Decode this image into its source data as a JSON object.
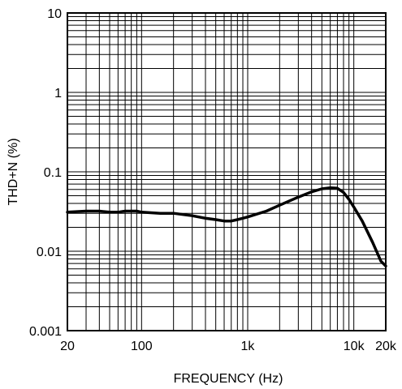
{
  "chart_data": {
    "type": "line",
    "title": "",
    "xlabel": "FREQUENCY (Hz)",
    "ylabel": "THD+N (%)",
    "xscale": "log",
    "yscale": "log",
    "xlim": [
      20,
      20000
    ],
    "ylim": [
      0.001,
      10
    ],
    "grid": true,
    "x_ticks": [
      {
        "value": 20,
        "label": "20"
      },
      {
        "value": 100,
        "label": "100"
      },
      {
        "value": 1000,
        "label": "1k"
      },
      {
        "value": 10000,
        "label": "10k"
      },
      {
        "value": 20000,
        "label": "20k"
      }
    ],
    "y_ticks": [
      {
        "value": 10,
        "label": "10"
      },
      {
        "value": 1,
        "label": "1"
      },
      {
        "value": 0.1,
        "label": "0.1"
      },
      {
        "value": 0.01,
        "label": "0.01"
      },
      {
        "value": 0.001,
        "label": "0.001"
      }
    ],
    "series": [
      {
        "color": "#000000",
        "points": [
          [
            20,
            0.031
          ],
          [
            30,
            0.032
          ],
          [
            40,
            0.032
          ],
          [
            50,
            0.031
          ],
          [
            60,
            0.031
          ],
          [
            70,
            0.032
          ],
          [
            80,
            0.032
          ],
          [
            90,
            0.032
          ],
          [
            100,
            0.031
          ],
          [
            150,
            0.03
          ],
          [
            200,
            0.03
          ],
          [
            300,
            0.028
          ],
          [
            400,
            0.026
          ],
          [
            500,
            0.025
          ],
          [
            600,
            0.024
          ],
          [
            700,
            0.024
          ],
          [
            800,
            0.025
          ],
          [
            900,
            0.026
          ],
          [
            1000,
            0.027
          ],
          [
            1500,
            0.032
          ],
          [
            2000,
            0.038
          ],
          [
            3000,
            0.048
          ],
          [
            4000,
            0.056
          ],
          [
            5000,
            0.061
          ],
          [
            6000,
            0.063
          ],
          [
            7000,
            0.062
          ],
          [
            8000,
            0.055
          ],
          [
            9000,
            0.045
          ],
          [
            10000,
            0.036
          ],
          [
            12000,
            0.024
          ],
          [
            15000,
            0.013
          ],
          [
            18000,
            0.0075
          ],
          [
            20000,
            0.0065
          ]
        ]
      }
    ]
  }
}
